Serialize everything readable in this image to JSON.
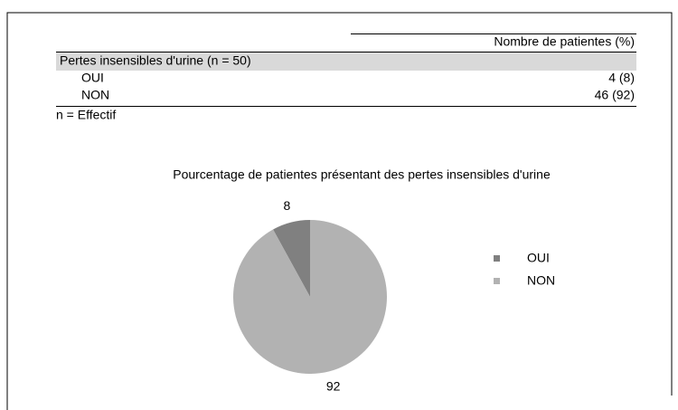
{
  "table": {
    "header": "Nombre de patientes (%)",
    "group": "Pertes insensibles d'urine (n = 50)",
    "rows": [
      [
        "OUI",
        "4 (8)"
      ],
      [
        "NON",
        "46 (92)"
      ]
    ],
    "note": "n = Effectif"
  },
  "chart_data": {
    "type": "pie",
    "title": "Pourcentage de patientes présentant des pertes insensibles d'urine",
    "categories": [
      "OUI",
      "NON"
    ],
    "values": [
      8,
      92
    ],
    "colors": [
      "#808080",
      "#b2b2b2"
    ],
    "legend": "right"
  }
}
